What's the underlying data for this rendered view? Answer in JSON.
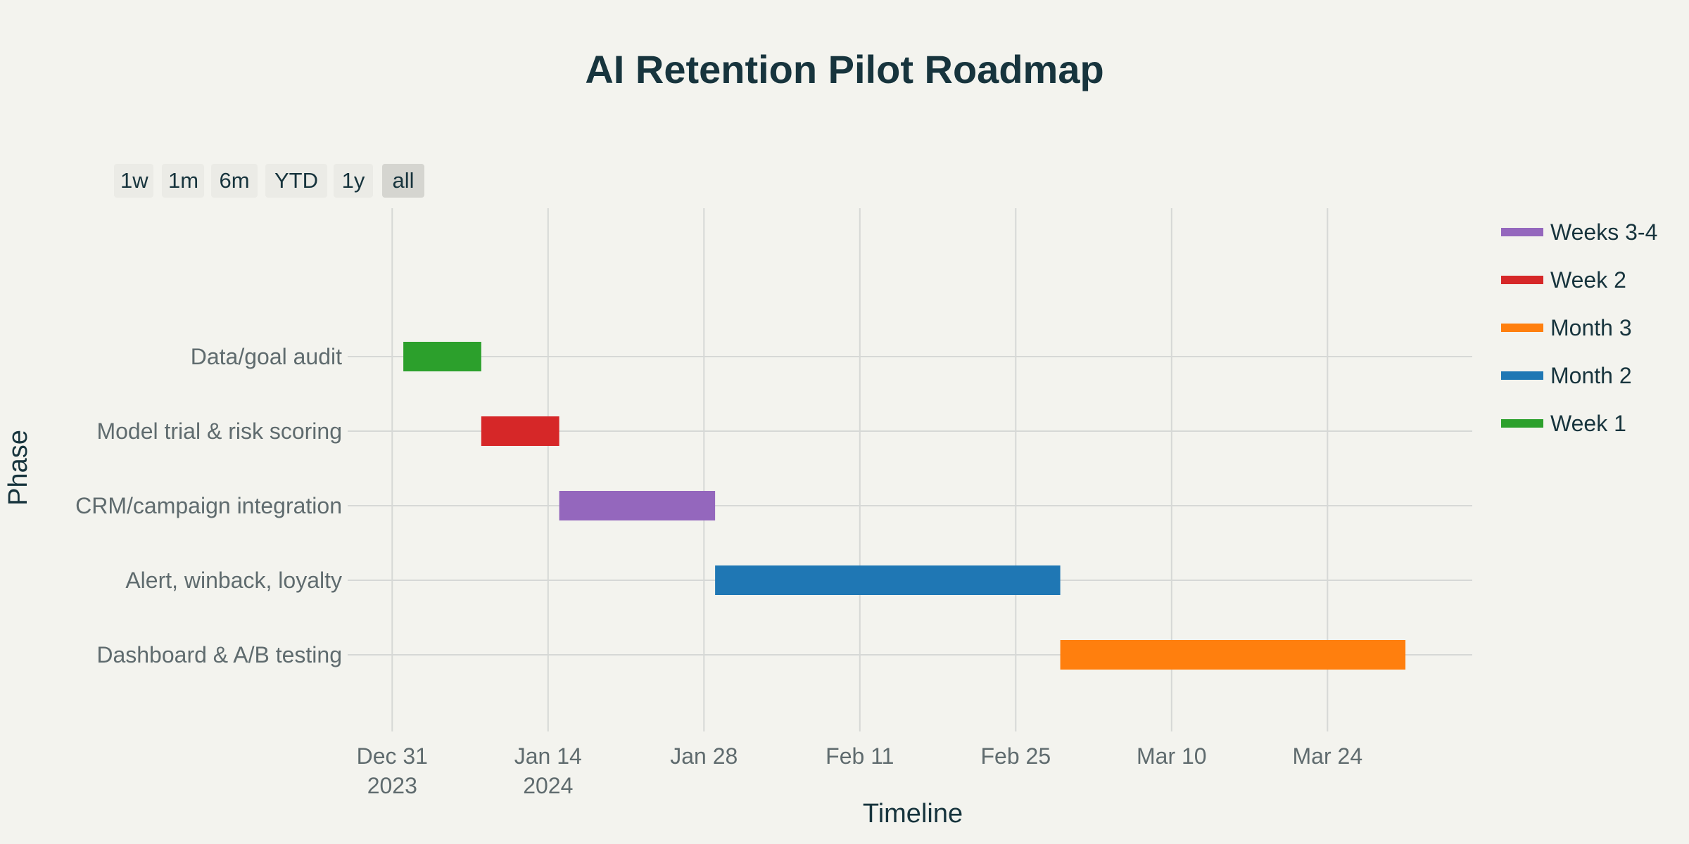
{
  "title": "AI Retention Pilot Roadmap",
  "range_selector": {
    "buttons": [
      "1w",
      "1m",
      "6m",
      "YTD",
      "1y",
      "all"
    ],
    "active": "all"
  },
  "legend": [
    "Weeks 3-4",
    "Week 2",
    "Month 3",
    "Month 2",
    "Week 1"
  ],
  "colors": {
    "Week 1": "#2ca02c",
    "Week 2": "#d62728",
    "Weeks 3-4": "#9467bd",
    "Month 2": "#1f77b4",
    "Month 3": "#ff7f0e",
    "background": "#f3f3ee",
    "grid": "#d6d8d6",
    "title": "#17343d"
  },
  "chart_data": {
    "type": "gantt",
    "title": "AI Retention Pilot Roadmap",
    "xlabel": "Timeline",
    "ylabel": "Phase",
    "x_axis_type": "date",
    "xlim": [
      "2023-12-27",
      "2024-04-06"
    ],
    "x_ticks": [
      {
        "date": "2023-12-31",
        "label": "Dec 31",
        "sublabel": "2023"
      },
      {
        "date": "2024-01-14",
        "label": "Jan 14",
        "sublabel": "2024"
      },
      {
        "date": "2024-01-28",
        "label": "Jan 28",
        "sublabel": ""
      },
      {
        "date": "2024-02-11",
        "label": "Feb 11",
        "sublabel": ""
      },
      {
        "date": "2024-02-25",
        "label": "Feb 25",
        "sublabel": ""
      },
      {
        "date": "2024-03-10",
        "label": "Mar 10",
        "sublabel": ""
      },
      {
        "date": "2024-03-24",
        "label": "Mar 24",
        "sublabel": ""
      }
    ],
    "categories": [
      "Data/goal audit",
      "Model trial & risk scoring",
      "CRM/campaign integration",
      "Alert, winback, loyalty",
      "Dashboard & A/B testing"
    ],
    "tasks": [
      {
        "phase": "Data/goal audit",
        "start": "2024-01-01",
        "end": "2024-01-07",
        "series": "Week 1"
      },
      {
        "phase": "Model trial & risk scoring",
        "start": "2024-01-08",
        "end": "2024-01-14",
        "series": "Week 2"
      },
      {
        "phase": "CRM/campaign integration",
        "start": "2024-01-15",
        "end": "2024-01-28",
        "series": "Weeks 3-4"
      },
      {
        "phase": "Alert, winback, loyalty",
        "start": "2024-01-29",
        "end": "2024-02-28",
        "series": "Month 2"
      },
      {
        "phase": "Dashboard & A/B testing",
        "start": "2024-02-29",
        "end": "2024-03-30",
        "series": "Month 3"
      }
    ],
    "grid": true,
    "legend_position": "top-right"
  }
}
